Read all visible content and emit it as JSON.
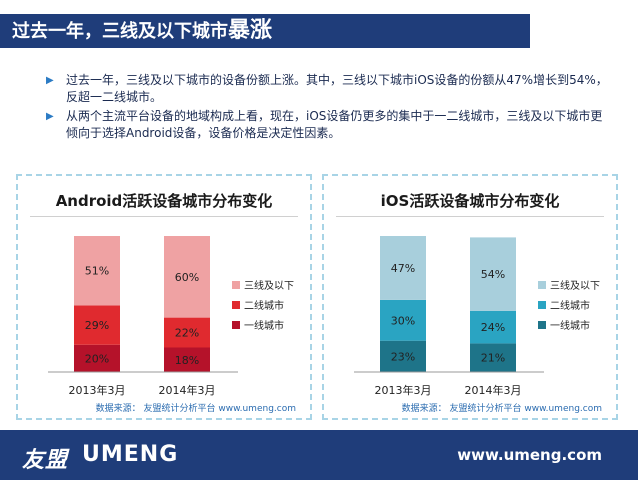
{
  "header": {
    "title_normal": "过去一年，三线及以下城市",
    "title_strong": "暴涨"
  },
  "bullets": [
    "过去一年，三线及以下城市的设备份额上涨。其中，三线以下城市iOS设备的份额从47%增长到54%，反超一二线城市。",
    "从两个主流平台设备的地域构成上看，现在，iOS设备仍更多的集中于一二线城市，三线及以下城市更倾向于选择Android设备，设备价格是决定性因素。"
  ],
  "chart_data": [
    {
      "type": "bar",
      "stacked": true,
      "title": "Android活跃设备城市分布变化",
      "categories": [
        "2013年3月",
        "2014年3月"
      ],
      "series": [
        {
          "name": "一线城市",
          "values": [
            20,
            18
          ],
          "color": "#b5122a"
        },
        {
          "name": "二线城市",
          "values": [
            29,
            22
          ],
          "color": "#e02a2f"
        },
        {
          "name": "三线及以下",
          "values": [
            51,
            60
          ],
          "color": "#efa2a3"
        }
      ],
      "ylim": [
        0,
        100
      ],
      "legend": "right",
      "source": "数据来源： 友盟统计分析平台 www.umeng.com"
    },
    {
      "type": "bar",
      "stacked": true,
      "title": "iOS活跃设备城市分布变化",
      "categories": [
        "2013年3月",
        "2014年3月"
      ],
      "series": [
        {
          "name": "一线城市",
          "values": [
            23,
            21
          ],
          "color": "#1e7489"
        },
        {
          "name": "二线城市",
          "values": [
            30,
            24
          ],
          "color": "#2aa4c2"
        },
        {
          "name": "三线及以下",
          "values": [
            47,
            54
          ],
          "color": "#a8cfdc"
        }
      ],
      "ylim": [
        0,
        100
      ],
      "legend": "right",
      "source": "数据来源： 友盟统计分析平台 www.umeng.com"
    }
  ],
  "footer": {
    "logo_text": "友盟",
    "logo_brand": "UMENG",
    "website": "www.umeng.com"
  }
}
